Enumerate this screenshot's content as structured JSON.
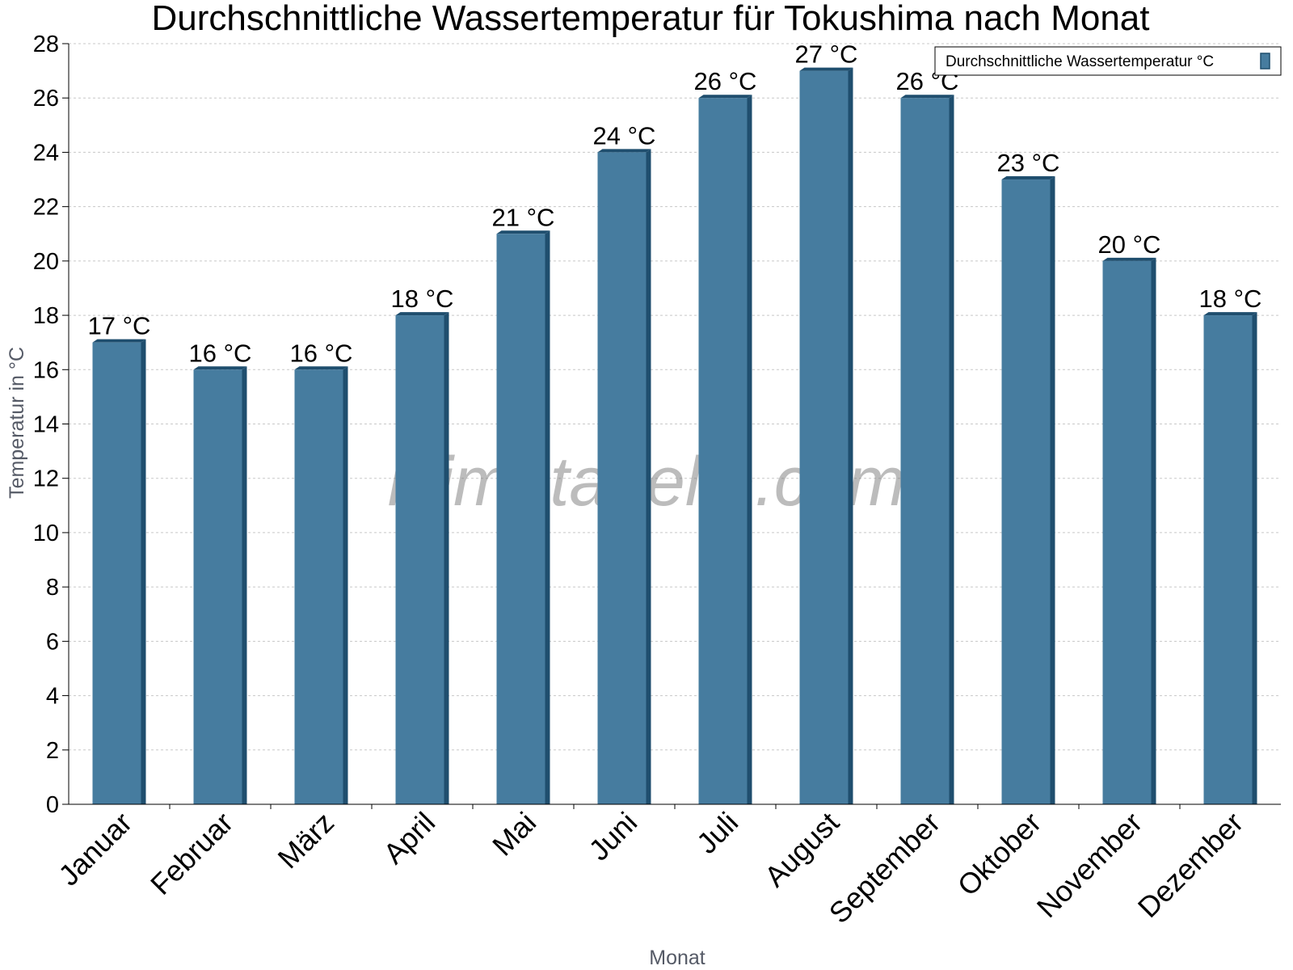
{
  "chart_data": {
    "type": "bar",
    "title": "Durchschnittliche Wassertemperatur für Tokushima nach Monat",
    "xlabel": "Monat",
    "ylabel": "Temperatur in °C",
    "categories": [
      "Januar",
      "Februar",
      "März",
      "April",
      "Mai",
      "Juni",
      "Juli",
      "August",
      "September",
      "Oktober",
      "November",
      "Dezember"
    ],
    "series": [
      {
        "name": "Durchschnittliche Wassertemperatur °C",
        "values": [
          17,
          16,
          16,
          18,
          21,
          24,
          26,
          27,
          26,
          23,
          20,
          18
        ],
        "labels": [
          "17 °C",
          "16 °C",
          "16 °C",
          "18 °C",
          "21 °C",
          "24 °C",
          "26 °C",
          "27 °C",
          "26 °C",
          "23 °C",
          "20 °C",
          "18 °C"
        ]
      }
    ],
    "ylim": [
      0,
      28
    ],
    "ytick_step": 2,
    "grid": true,
    "legend_position": "top-right",
    "colors": {
      "bar": "#467c9f",
      "bar_side": "#1f4e6e",
      "grid": "#c8c8c8"
    }
  },
  "watermark": "klimatabelle.com"
}
